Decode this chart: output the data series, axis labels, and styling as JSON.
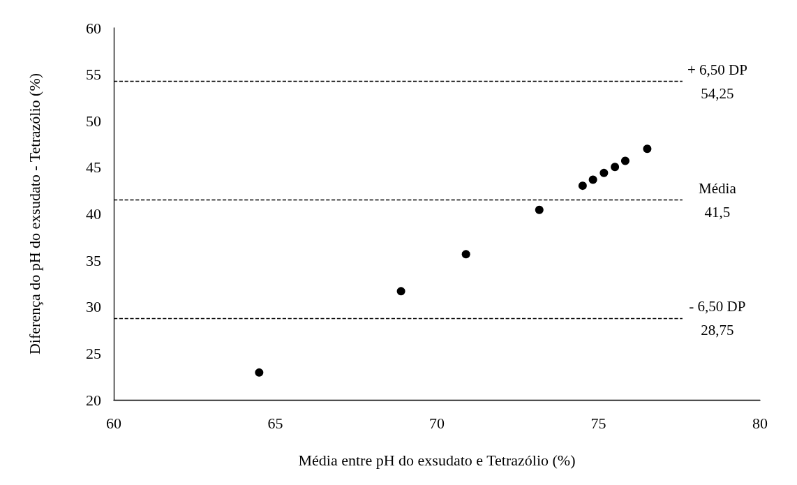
{
  "chart_data": {
    "type": "scatter",
    "xlabel": "Média entre pH do exsudato e Tetrazólio (%)",
    "ylabel": "Diferença do pH do exsudato - Tetrazólio (%)",
    "x": [
      64.5,
      68.89,
      70.9,
      73.17,
      74.51,
      74.83,
      75.17,
      75.51,
      75.83,
      76.51
    ],
    "values": [
      22.94,
      31.68,
      35.66,
      40.43,
      43.03,
      43.68,
      44.4,
      45.05,
      45.7,
      47.0
    ],
    "color": "#000000",
    "marker": "circle",
    "grid": false,
    "xlim": [
      60,
      80
    ],
    "xticks": [
      60,
      65,
      70,
      75,
      80
    ],
    "ylim": [
      20,
      60
    ],
    "yticks": [
      20,
      25,
      30,
      35,
      40,
      45,
      50,
      55,
      60
    ],
    "ref_lines": [
      {
        "axis": "y",
        "value": 54.25,
        "label": "+ 6,50 DP\n54,25",
        "line_style": "dashed"
      },
      {
        "axis": "y",
        "value": 41.5,
        "label": "Média\n41,5",
        "line_style": "dashed"
      },
      {
        "axis": "y",
        "value": 28.75,
        "label": "- 6,50 DP\n28,75",
        "line_style": "dashed"
      }
    ]
  }
}
